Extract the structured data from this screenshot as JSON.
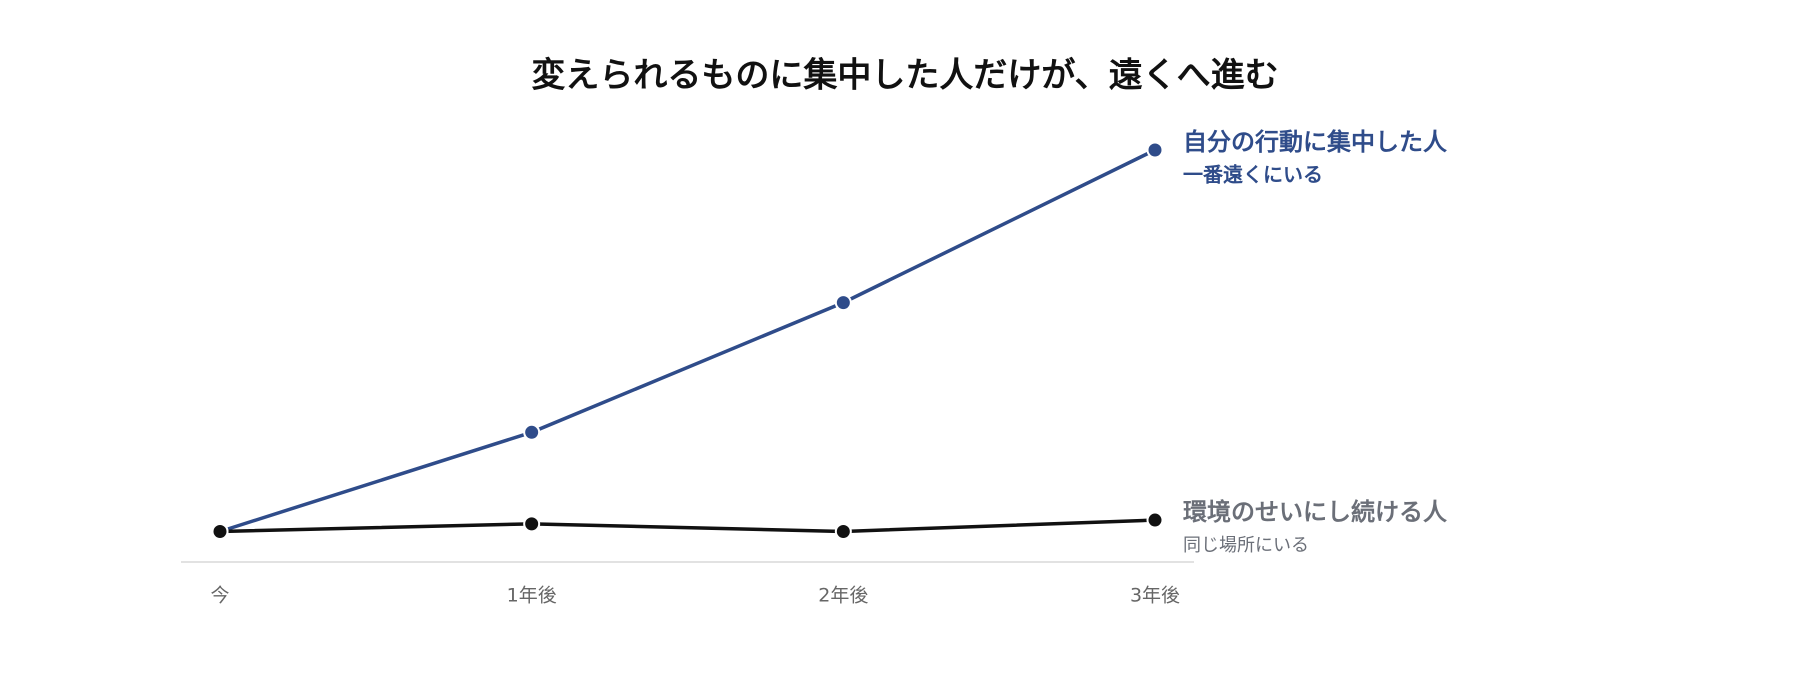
{
  "chart_data": {
    "type": "line",
    "title": "変えられるものに集中した人だけが、遠くへ進む",
    "categories": [
      "今",
      "1年後",
      "2年後",
      "3年後"
    ],
    "series": [
      {
        "name": "自分の行動に集中した人",
        "annotation": "一番遠くにいる",
        "color": "#2f4c8a",
        "label_color": "#2f4c8a",
        "values": [
          0,
          26,
          60,
          100
        ]
      },
      {
        "name": "環境のせいにし続ける人",
        "annotation": "同じ場所にいる",
        "color": "#111111",
        "label_color": "#6b6f78",
        "values": [
          0,
          2,
          0,
          3
        ]
      }
    ],
    "ylim": [
      -8,
      100
    ]
  }
}
